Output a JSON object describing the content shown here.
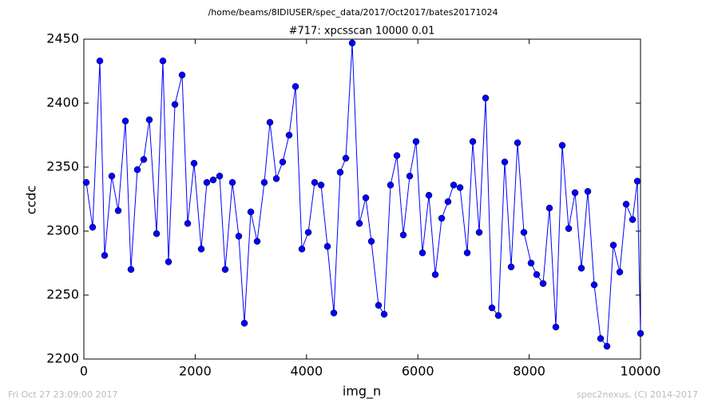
{
  "chart_data": {
    "type": "line",
    "suptitle": "/home/beams/8IDIUSER/spec_data/2017/Oct2017/bates20171024",
    "title": "#717: xpcsscan 10000 0.01",
    "xlabel": "img_n",
    "ylabel": "ccdc",
    "footer_left": "Fri Oct 27 23:09:00 2017",
    "footer_right": "spec2nexus, (C) 2014-2017",
    "xlim": [
      0,
      10000
    ],
    "xticks": [
      0,
      2000,
      4000,
      6000,
      8000,
      10000
    ],
    "ylim": [
      2200,
      2450
    ],
    "yticks": [
      2200,
      2250,
      2300,
      2350,
      2400,
      2450
    ],
    "series": [
      {
        "color": "#0000ff",
        "x": [
          43,
          158,
          287,
          373,
          502,
          617,
          746,
          846,
          961,
          1076,
          1176,
          1306,
          1420,
          1521,
          1636,
          1765,
          1865,
          1980,
          2109,
          2209,
          2324,
          2439,
          2539,
          2669,
          2783,
          2884,
          2999,
          3113,
          3242,
          3343,
          3458,
          3572,
          3687,
          3802,
          3917,
          4032,
          4146,
          4261,
          4376,
          4491,
          4605,
          4706,
          4821,
          4950,
          5065,
          5165,
          5294,
          5395,
          5509,
          5624,
          5739,
          5854,
          5968,
          6083,
          6198,
          6313,
          6428,
          6542,
          6643,
          6758,
          6887,
          6987,
          7102,
          7217,
          7331,
          7446,
          7561,
          7676,
          7791,
          7905,
          8034,
          8135,
          8250,
          8364,
          8479,
          8594,
          8709,
          8824,
          8938,
          9053,
          9168,
          9283,
          9397,
          9512,
          9627,
          9742,
          9857,
          9943,
          10000
        ],
        "values": [
          2338,
          2303,
          2433,
          2281,
          2343,
          2316,
          2386,
          2270,
          2348,
          2356,
          2387,
          2298,
          2433,
          2276,
          2399,
          2422,
          2306,
          2353,
          2286,
          2338,
          2340,
          2343,
          2270,
          2338,
          2296,
          2228,
          2315,
          2292,
          2338,
          2385,
          2341,
          2354,
          2375,
          2413,
          2286,
          2299,
          2338,
          2336,
          2288,
          2236,
          2346,
          2357,
          2447,
          2306,
          2326,
          2292,
          2242,
          2235,
          2336,
          2359,
          2297,
          2343,
          2370,
          2283,
          2328,
          2266,
          2310,
          2323,
          2336,
          2334,
          2283,
          2370,
          2299,
          2404,
          2240,
          2234,
          2354,
          2272,
          2369,
          2299,
          2275,
          2266,
          2259,
          2318,
          2225,
          2367,
          2302,
          2330,
          2271,
          2331,
          2258,
          2216,
          2210,
          2289,
          2268,
          2321,
          2309,
          2339,
          2220
        ]
      }
    ]
  }
}
